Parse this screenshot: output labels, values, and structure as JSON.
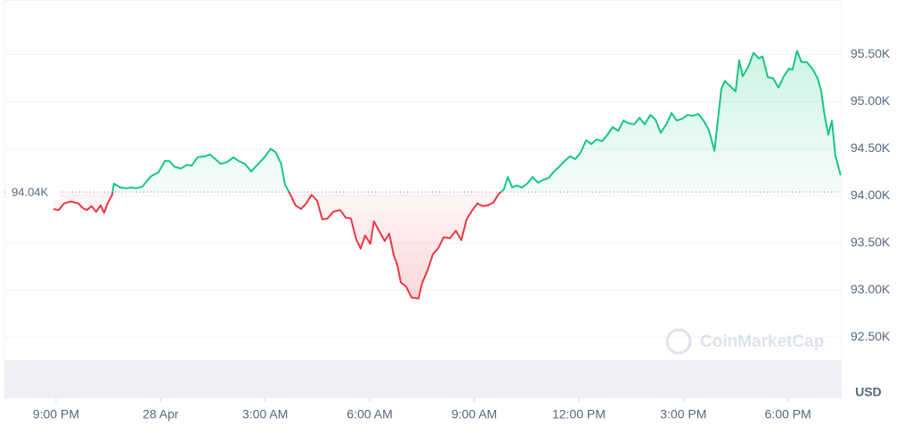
{
  "chart_data": {
    "type": "line",
    "x": [
      -0.08,
      0.08,
      0.23,
      0.43,
      0.64,
      0.77,
      0.89,
      1.02,
      1.15,
      1.28,
      1.38,
      1.48,
      1.61,
      1.66,
      1.84,
      2.02,
      2.17,
      2.3,
      2.48,
      2.61,
      2.73,
      2.94,
      3.12,
      3.25,
      3.4,
      3.58,
      3.76,
      3.89,
      4.06,
      4.27,
      4.42,
      4.57,
      4.73,
      4.91,
      5.09,
      5.24,
      5.42,
      5.6,
      5.8,
      5.98,
      6.16,
      6.31,
      6.46,
      6.57,
      6.7,
      6.87,
      7.03,
      7.18,
      7.33,
      7.49,
      7.64,
      7.79,
      7.95,
      8.15,
      8.31,
      8.46,
      8.61,
      8.74,
      8.87,
      9.02,
      9.12,
      9.28,
      9.43,
      9.56,
      9.69,
      9.79,
      9.89,
      10.04,
      10.2,
      10.4,
      10.5,
      10.66,
      10.81,
      10.96,
      11.12,
      11.3,
      11.47,
      11.63,
      11.78,
      11.93,
      12.09,
      12.24,
      12.39,
      12.55,
      12.7,
      12.85,
      12.96,
      13.09,
      13.21,
      13.37,
      13.52,
      13.67,
      13.83,
      13.98,
      14.13,
      14.29,
      14.44,
      14.59,
      14.75,
      14.9,
      15.05,
      15.21,
      15.36,
      15.51,
      15.67,
      15.82,
      15.97,
      16.13,
      16.28,
      16.43,
      16.59,
      16.74,
      16.89,
      17.05,
      17.2,
      17.35,
      17.51,
      17.66,
      17.81,
      17.97,
      18.12,
      18.27,
      18.43,
      18.58,
      18.73,
      18.89,
      18.99,
      19.09,
      19.19,
      19.35,
      19.5,
      19.6,
      19.7,
      19.86,
      20.01,
      20.16,
      20.27,
      20.42,
      20.57,
      20.73,
      20.88,
      21.03,
      21.13,
      21.26,
      21.39,
      21.54,
      21.7,
      21.85,
      21.95,
      22.05,
      22.16,
      22.26,
      22.36,
      22.51
    ],
    "series": [
      {
        "name": "Price",
        "values": [
          93.86,
          93.85,
          93.92,
          93.94,
          93.92,
          93.87,
          93.85,
          93.89,
          93.83,
          93.9,
          93.82,
          93.92,
          94.01,
          94.13,
          94.09,
          94.08,
          94.09,
          94.08,
          94.1,
          94.16,
          94.21,
          94.25,
          94.37,
          94.37,
          94.31,
          94.29,
          94.33,
          94.32,
          94.41,
          94.42,
          94.44,
          94.39,
          94.34,
          94.36,
          94.41,
          94.37,
          94.34,
          94.26,
          94.34,
          94.41,
          94.5,
          94.46,
          94.34,
          94.12,
          94.03,
          93.9,
          93.86,
          93.92,
          94.01,
          93.95,
          93.75,
          93.76,
          93.83,
          93.85,
          93.77,
          93.76,
          93.54,
          93.44,
          93.58,
          93.49,
          93.73,
          93.62,
          93.52,
          93.6,
          93.37,
          93.27,
          93.08,
          93.04,
          92.92,
          92.91,
          93.07,
          93.21,
          93.38,
          93.44,
          93.56,
          93.55,
          93.63,
          93.53,
          93.75,
          93.84,
          93.92,
          93.89,
          93.9,
          93.93,
          94.02,
          94.07,
          94.2,
          94.09,
          94.11,
          94.09,
          94.13,
          94.2,
          94.14,
          94.17,
          94.19,
          94.26,
          94.31,
          94.37,
          94.42,
          94.39,
          94.46,
          94.59,
          94.55,
          94.6,
          94.58,
          94.65,
          94.73,
          94.69,
          94.8,
          94.77,
          94.76,
          94.83,
          94.76,
          94.86,
          94.81,
          94.67,
          94.76,
          94.88,
          94.8,
          94.82,
          94.86,
          94.85,
          94.87,
          94.8,
          94.7,
          94.48,
          94.81,
          95.14,
          95.22,
          95.16,
          95.11,
          95.44,
          95.27,
          95.37,
          95.52,
          95.46,
          95.48,
          95.26,
          95.25,
          95.15,
          95.27,
          95.35,
          95.34,
          95.54,
          95.42,
          95.42,
          95.35,
          95.25,
          95.12,
          94.86,
          94.65,
          94.8,
          94.43,
          94.22
        ]
      }
    ],
    "up_color": "#16c784",
    "down_color": "#ea3943",
    "reference_line": {
      "value": 94.04,
      "label": "94.04K"
    },
    "xlim": [
      -1.48,
      22.54
    ],
    "xticks": [
      {
        "value": 0,
        "label": "9:00 PM"
      },
      {
        "value": 3,
        "label": "28 Apr"
      },
      {
        "value": 6,
        "label": "3:00 AM"
      },
      {
        "value": 9,
        "label": "6:00 AM"
      },
      {
        "value": 12,
        "label": "9:00 AM"
      },
      {
        "value": 15,
        "label": "12:00 PM"
      },
      {
        "value": 18,
        "label": "3:00 PM"
      },
      {
        "value": 21,
        "label": "6:00 PM"
      }
    ],
    "ylim": [
      91.85,
      96.08
    ],
    "yticks": [
      {
        "value": 92.5,
        "label": "92.50K"
      },
      {
        "value": 93,
        "label": "93.00K"
      },
      {
        "value": 93.5,
        "label": "93.50K"
      },
      {
        "value": 94,
        "label": "94.00K"
      },
      {
        "value": 94.5,
        "label": "94.50K"
      },
      {
        "value": 95,
        "label": "95.00K"
      },
      {
        "value": 95.5,
        "label": "95.50K"
      }
    ],
    "y_unit": "USD",
    "watermark": "CoinMarketCap",
    "grid": true
  }
}
